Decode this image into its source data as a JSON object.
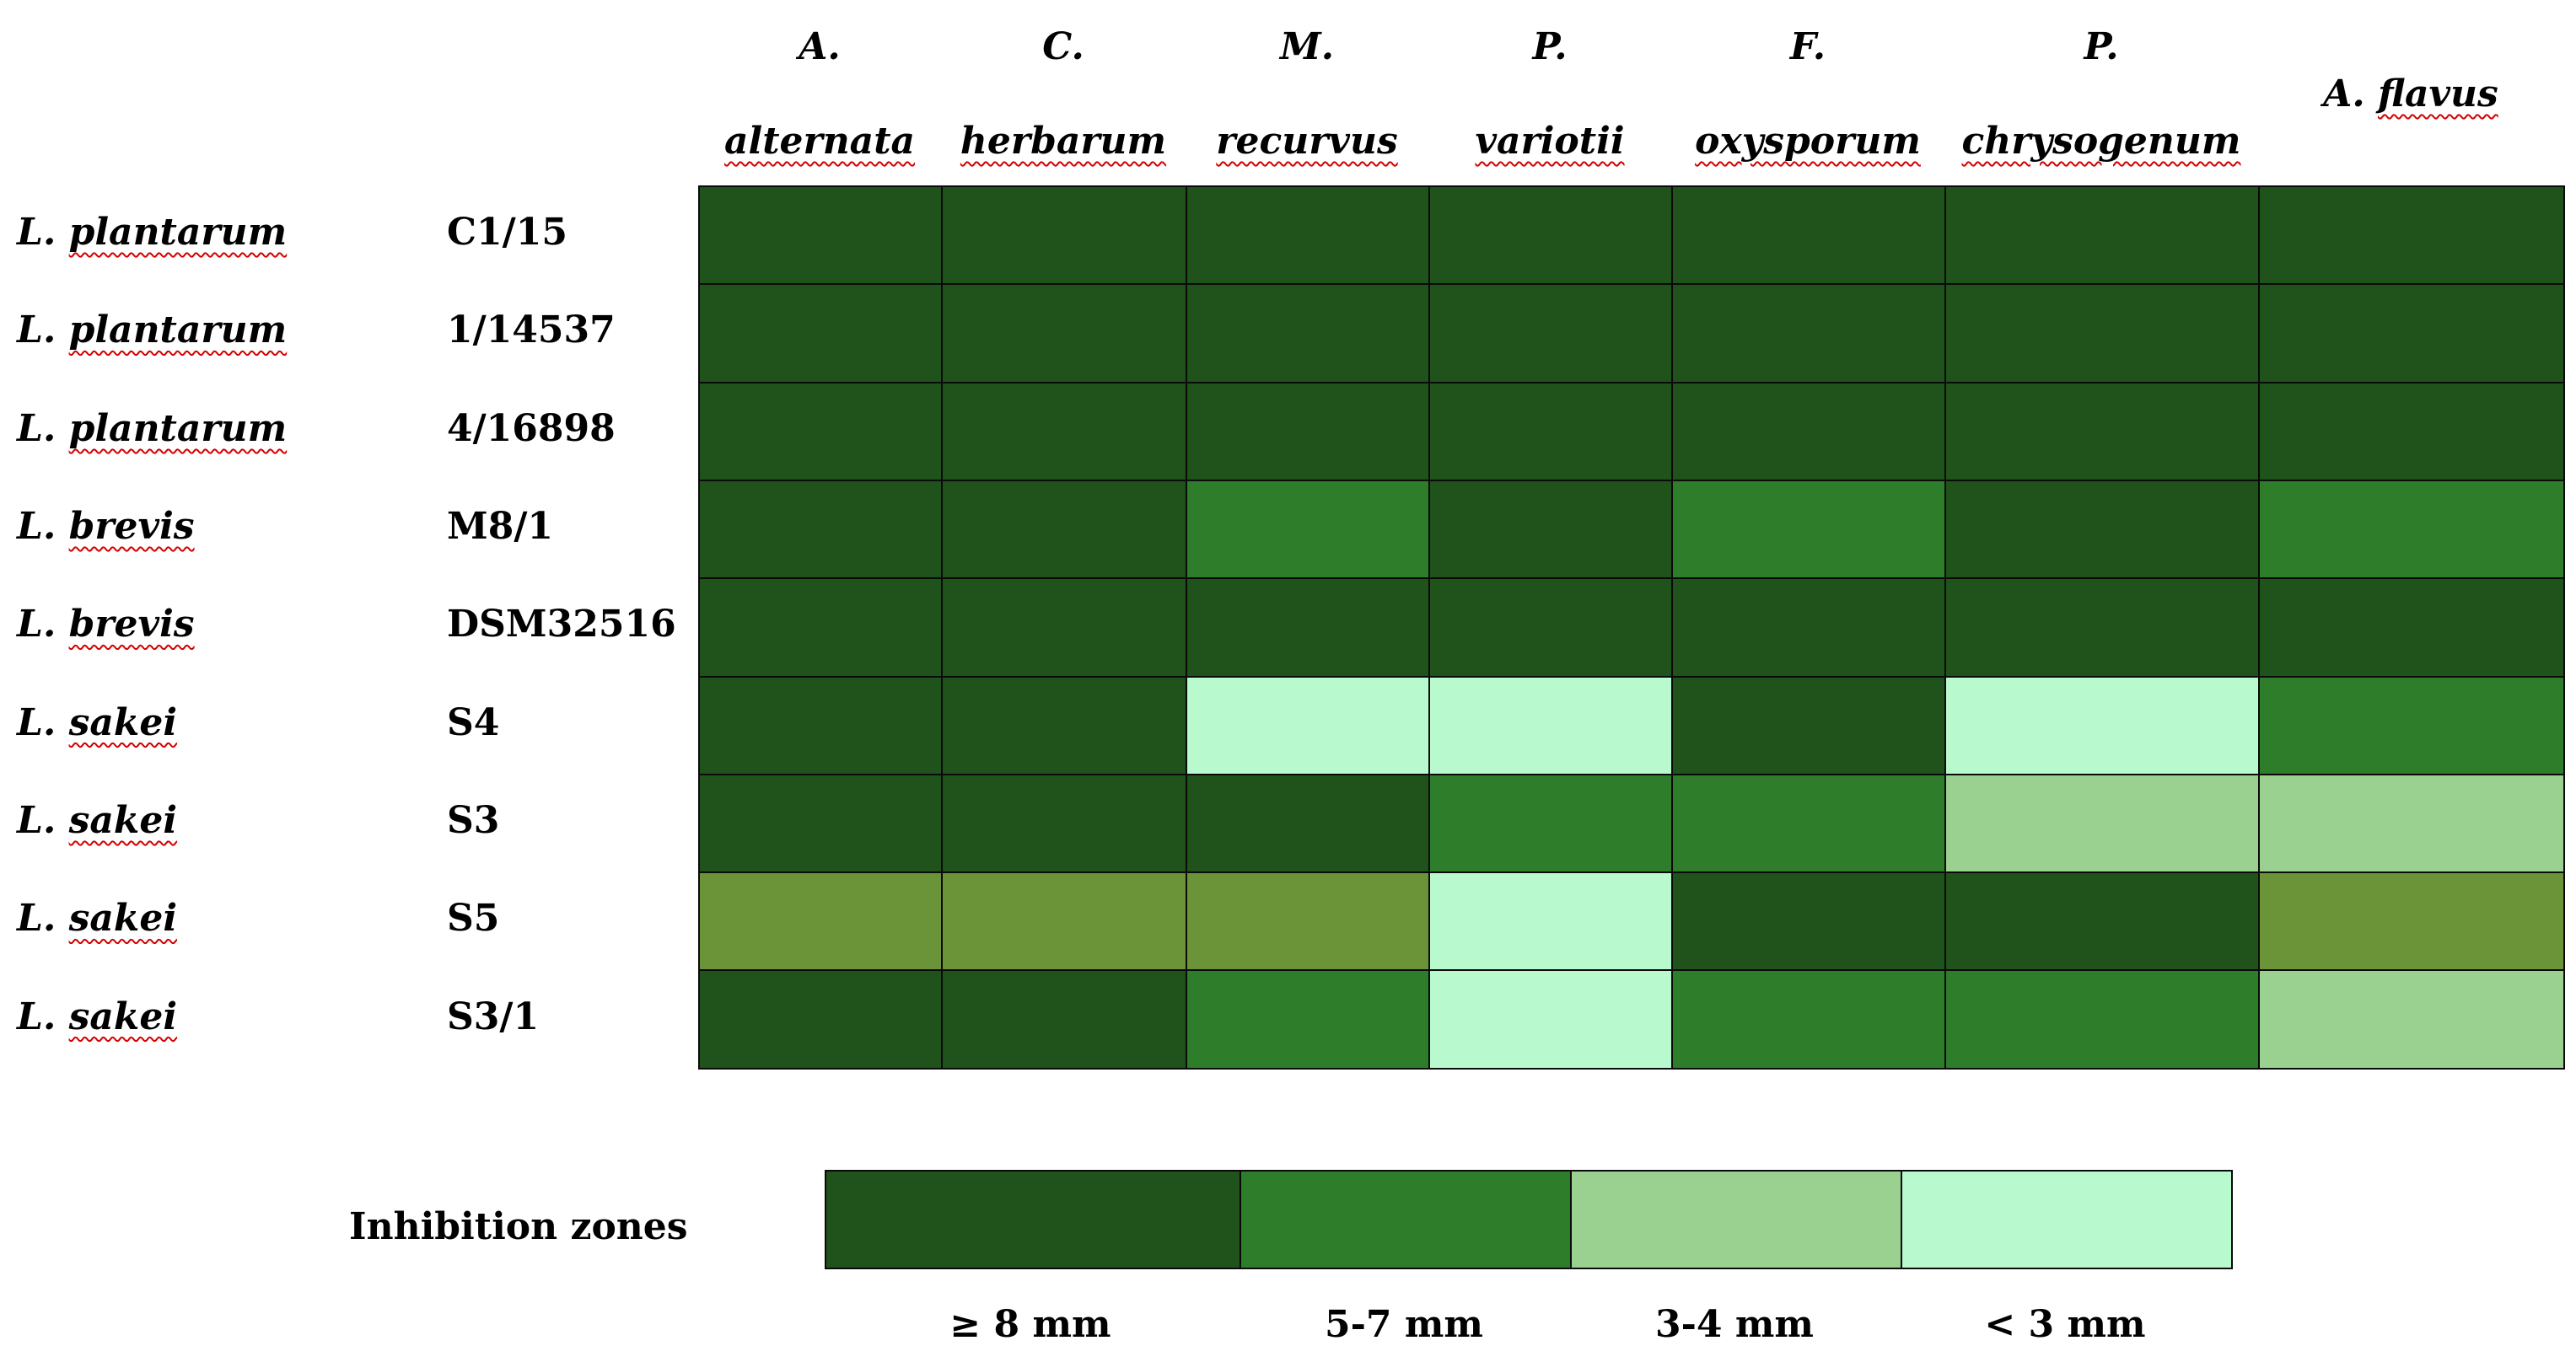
{
  "chart_data": {
    "type": "heatmap",
    "columns": [
      {
        "genus": "A.",
        "species": "alternata"
      },
      {
        "genus": "C.",
        "species": "herbarum"
      },
      {
        "genus": "M.",
        "species": "recurvus"
      },
      {
        "genus": "P.",
        "species": "variotii"
      },
      {
        "genus": "F.",
        "species": "oxysporum"
      },
      {
        "genus": "P.",
        "species": "chrysogenum"
      },
      {
        "genus": "A.",
        "species": "flavus"
      }
    ],
    "rows": [
      {
        "species": "L. plantarum",
        "strain": "C1/15"
      },
      {
        "species": "L. plantarum",
        "strain": "1/14537"
      },
      {
        "species": "L. plantarum",
        "strain": "4/16898"
      },
      {
        "species": "L. brevis",
        "strain": "M8/1"
      },
      {
        "species": "L. brevis",
        "strain": "DSM32516"
      },
      {
        "species": "L. sakei",
        "strain": "S4"
      },
      {
        "species": "L. sakei",
        "strain": "S3"
      },
      {
        "species": "L. sakei",
        "strain": "S5"
      },
      {
        "species": "L. sakei",
        "strain": "S3/1"
      }
    ],
    "values": [
      [
        0,
        0,
        0,
        0,
        0,
        0,
        0
      ],
      [
        0,
        0,
        0,
        0,
        0,
        0,
        0
      ],
      [
        0,
        0,
        0,
        0,
        0,
        0,
        0
      ],
      [
        0,
        0,
        1,
        0,
        1,
        0,
        1
      ],
      [
        0,
        0,
        0,
        0,
        0,
        0,
        0
      ],
      [
        0,
        0,
        3,
        3,
        0,
        3,
        1
      ],
      [
        0,
        0,
        0,
        1,
        1,
        2,
        2
      ],
      [
        4,
        4,
        4,
        3,
        0,
        0,
        4
      ],
      [
        0,
        0,
        1,
        3,
        1,
        1,
        2
      ]
    ],
    "legend": {
      "title": "Inhibition zones",
      "categories": [
        {
          "label": "≥ 8 mm",
          "color": "#20521c"
        },
        {
          "label": "5-7 mm",
          "color": "#2e7d2b"
        },
        {
          "label": "3-4 mm",
          "color": "#9ad190"
        },
        {
          "label": "< 3 mm",
          "color": "#b8f9ce"
        }
      ]
    },
    "unlabeled_color": "#6b9438"
  }
}
